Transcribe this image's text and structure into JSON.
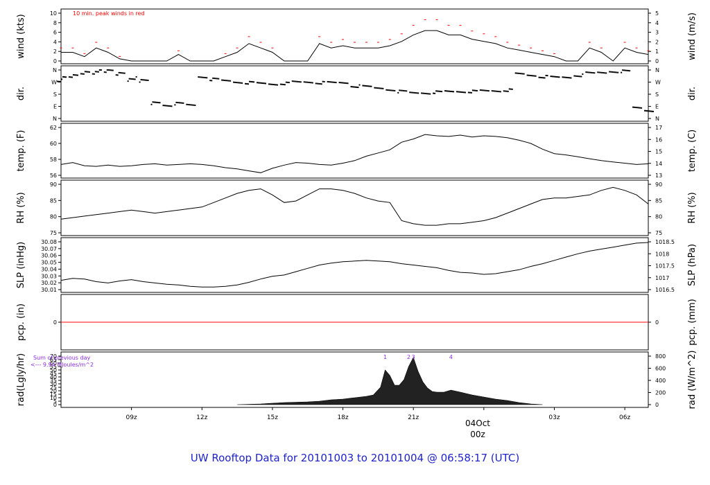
{
  "title": "UW Rooftop Data for 20101003  to  20101004 @ 06:58:17  (UTC)",
  "colors": {
    "title": "#1f23c9",
    "peak": "#ff0000",
    "date": "#ff0000",
    "annot": "#8a2be2",
    "line": "#000000"
  },
  "x_ticks": [
    "09z",
    "12z",
    "15z",
    "18z",
    "21z",
    "03z",
    "06z"
  ],
  "date_label": {
    "day": "04Oct",
    "hour": "00z"
  },
  "wind_note": "10 min. peak winds in red",
  "rad_note": {
    "line1": "Sum of previous day",
    "line2": "<--- 9.94 MJoules/m^2"
  },
  "rad_peaks": [
    "1",
    "2",
    "3",
    "4"
  ],
  "chart_data": [
    {
      "type": "line",
      "name": "wind",
      "ylabel": "wind (kts)",
      "ylabel_right": "wind (m/s)",
      "yticks": [
        "0",
        "2",
        "4",
        "6",
        "8",
        "10"
      ],
      "yticks_right": [
        "0",
        "1",
        "2",
        "3",
        "4",
        "5"
      ],
      "ylim": [
        0,
        11
      ],
      "x_hours": [
        6,
        6.5,
        7,
        7.5,
        8,
        8.5,
        9,
        9.5,
        10,
        10.5,
        11,
        11.5,
        12,
        12.5,
        13,
        13.5,
        14,
        14.5,
        15,
        15.5,
        16,
        16.5,
        17,
        17.5,
        18,
        18.5,
        19,
        19.5,
        20,
        20.5,
        21,
        21.5,
        22,
        22.5,
        23,
        23.5,
        24,
        24.5,
        25,
        25.5,
        26,
        26.5,
        27,
        27.5,
        28,
        28.5,
        29,
        29.5,
        30,
        30.5,
        31
      ],
      "values": [
        2,
        2,
        1,
        3,
        2,
        0.5,
        0,
        0,
        0,
        0,
        1.5,
        0,
        0,
        0,
        1,
        2,
        4,
        3,
        2,
        0,
        0,
        0,
        4,
        3,
        3.5,
        3,
        3,
        3,
        3.5,
        4.5,
        6,
        7,
        7,
        6,
        6,
        5,
        4.5,
        4,
        3,
        2.5,
        2,
        1.5,
        1,
        0,
        0,
        3,
        2,
        0,
        3,
        2,
        1.5
      ]
    },
    {
      "type": "scatter",
      "name": "dir",
      "ylabel": "dir.",
      "ylabel_right": "dir.",
      "yticks": [
        "N",
        "E",
        "S",
        "W",
        "N"
      ],
      "yticks_right": [
        "N",
        "E",
        "S",
        "W",
        "N"
      ],
      "x_hours": [
        6,
        6.5,
        7,
        7.5,
        8,
        8.5,
        9,
        9.5,
        10,
        10.5,
        11,
        11.5,
        12,
        12.5,
        13,
        13.5,
        14,
        14.5,
        15,
        15.5,
        16,
        16.5,
        17,
        17.5,
        18,
        18.5,
        19,
        19.5,
        20,
        20.5,
        21,
        21.5,
        22,
        22.5,
        23,
        23.5,
        24,
        24.5,
        25,
        25.5,
        26,
        26.5,
        27,
        27.5,
        28,
        28.5,
        29,
        29.5,
        30,
        30.5,
        31
      ],
      "values_deg": [
        300,
        320,
        350,
        355,
        355,
        340,
        300,
        280,
        120,
        100,
        110,
        100,
        310,
        290,
        280,
        270,
        265,
        260,
        255,
        260,
        270,
        270,
        265,
        265,
        265,
        240,
        235,
        225,
        215,
        200,
        190,
        190,
        195,
        200,
        200,
        200,
        205,
        205,
        210,
        330,
        320,
        310,
        305,
        305,
        320,
        335,
        340,
        350,
        350,
        80,
        60
      ]
    },
    {
      "type": "line",
      "name": "temp",
      "ylabel": "temp. (F)",
      "ylabel_right": "temp. (C)",
      "yticks": [
        "56",
        "58",
        "60",
        "62"
      ],
      "yticks_right": [
        "13",
        "14",
        "15",
        "16",
        "17"
      ],
      "ylim": [
        54.8,
        62.3
      ],
      "x_hours": [
        6,
        6.5,
        7,
        7.5,
        8,
        8.5,
        9,
        9.5,
        10,
        10.5,
        11,
        11.5,
        12,
        12.5,
        13,
        13.5,
        14,
        14.5,
        15,
        15.5,
        16,
        16.5,
        17,
        17.5,
        18,
        18.5,
        19,
        19.5,
        20,
        20.5,
        21,
        21.5,
        22,
        22.5,
        23,
        23.5,
        24,
        24.5,
        25,
        25.5,
        26,
        26.5,
        27,
        27.5,
        28,
        28.5,
        29,
        29.5,
        30,
        30.5,
        31
      ],
      "values": [
        56.5,
        56.8,
        56.3,
        56.2,
        56.4,
        56.2,
        56.3,
        56.5,
        56.6,
        56.4,
        56.5,
        56.6,
        56.5,
        56.3,
        56.0,
        55.8,
        55.5,
        55.2,
        55.9,
        56.4,
        56.8,
        56.7,
        56.5,
        56.4,
        56.7,
        57.1,
        57.8,
        58.3,
        58.8,
        60.0,
        60.5,
        61.2,
        61.0,
        60.9,
        61.1,
        60.8,
        61.0,
        60.9,
        60.7,
        60.3,
        59.8,
        58.9,
        58.2,
        58.0,
        57.7,
        57.4,
        57.1,
        56.9,
        56.7,
        56.5,
        56.6
      ]
    },
    {
      "type": "line",
      "name": "RH",
      "ylabel": "RH (%)",
      "ylabel_right": "RH (%)",
      "yticks": [
        "75",
        "80",
        "85",
        "90"
      ],
      "yticks_right": [
        "75",
        "80",
        "85",
        "90"
      ],
      "ylim": [
        74.5,
        90.5
      ],
      "x_hours": [
        6,
        6.5,
        7,
        7.5,
        8,
        8.5,
        9,
        9.5,
        10,
        10.5,
        11,
        11.5,
        12,
        12.5,
        13,
        13.5,
        14,
        14.5,
        15,
        15.5,
        16,
        16.5,
        17,
        17.5,
        18,
        18.5,
        19,
        19.5,
        20,
        20.5,
        21,
        21.5,
        22,
        22.5,
        23,
        23.5,
        24,
        24.5,
        25,
        25.5,
        26,
        26.5,
        27,
        27.5,
        28,
        28.5,
        29,
        29.5,
        30,
        30.5,
        31
      ],
      "values": [
        79,
        79.5,
        80,
        80.5,
        81,
        81.5,
        82,
        81.5,
        81,
        81.5,
        82,
        82.5,
        83,
        84.5,
        86,
        87.5,
        88.5,
        89,
        87,
        84.5,
        85,
        87,
        89,
        89,
        88.5,
        87.5,
        86,
        85,
        84.5,
        78.5,
        77.5,
        77,
        77,
        77.5,
        77.5,
        78,
        78.5,
        79.5,
        81,
        82.5,
        84,
        85.5,
        86,
        86,
        86.5,
        87,
        88.5,
        89.5,
        88.5,
        87,
        84
      ]
    },
    {
      "type": "line",
      "name": "SLP",
      "ylabel": "SLP (inHg)",
      "ylabel_right": "SLP (hPa)",
      "yticks": [
        "30.01",
        "30.02",
        "30.03",
        "30.04",
        "30.05",
        "30.06",
        "30.07",
        "30.08"
      ],
      "yticks_right": [
        "1016.5",
        "1017",
        "1017.5",
        "1018",
        "1018.5"
      ],
      "ylim": [
        30.01,
        30.082
      ],
      "x_hours": [
        6,
        6.5,
        7,
        7.5,
        8,
        8.5,
        9,
        9.5,
        10,
        10.5,
        11,
        11.5,
        12,
        12.5,
        13,
        13.5,
        14,
        14.5,
        15,
        15.5,
        16,
        16.5,
        17,
        17.5,
        18,
        18.5,
        19,
        19.5,
        20,
        20.5,
        21,
        21.5,
        22,
        22.5,
        23,
        23.5,
        24,
        24.5,
        25,
        25.5,
        26,
        26.5,
        27,
        27.5,
        28,
        28.5,
        29,
        29.5,
        30,
        30.5,
        31
      ],
      "values": [
        30.024,
        30.027,
        30.026,
        30.022,
        30.02,
        30.023,
        30.025,
        30.022,
        30.02,
        30.018,
        30.017,
        30.015,
        30.014,
        30.014,
        30.015,
        30.017,
        30.021,
        30.026,
        30.03,
        30.032,
        30.037,
        30.042,
        30.047,
        30.05,
        30.052,
        30.053,
        30.054,
        30.053,
        30.052,
        30.049,
        30.047,
        30.045,
        30.043,
        30.039,
        30.036,
        30.035,
        30.033,
        30.034,
        30.037,
        30.04,
        30.045,
        30.049,
        30.054,
        30.059,
        30.064,
        30.068,
        30.071,
        30.074,
        30.077,
        30.08,
        30.081
      ]
    },
    {
      "type": "line",
      "name": "pcp",
      "ylabel": "pcp. (in)",
      "ylabel_right": "pcp. (mm)",
      "yticks": [
        "0"
      ],
      "yticks_right": [
        "0"
      ],
      "ylim": [
        -1,
        1
      ],
      "x_hours": [
        6,
        31
      ],
      "values": [
        0,
        0
      ]
    },
    {
      "type": "area",
      "name": "rad",
      "ylabel": "rad(Lgly/hr)",
      "ylabel_right": "rad (W/m^2)",
      "yticks": [
        "0",
        "5",
        "10",
        "15",
        "20",
        "25",
        "30",
        "35",
        "40",
        "45",
        "50",
        "55",
        "60",
        "65",
        "70"
      ],
      "yticks_right": [
        "0",
        "200",
        "400",
        "600",
        "800"
      ],
      "ylim": [
        0,
        70
      ],
      "x_hours": [
        13.5,
        14.5,
        15.5,
        16.5,
        17,
        17.5,
        18,
        18.5,
        19,
        19.3,
        19.6,
        19.8,
        20,
        20.2,
        20.4,
        20.6,
        20.8,
        21,
        21.2,
        21.4,
        21.6,
        21.8,
        22,
        22.3,
        22.6,
        23,
        23.5,
        24,
        24.5,
        25,
        25.5,
        26,
        26.5
      ],
      "values": [
        0,
        1,
        3,
        4,
        5,
        7,
        8,
        10,
        12,
        14,
        25,
        50,
        42,
        28,
        28,
        36,
        55,
        68,
        48,
        33,
        24,
        19,
        18,
        18,
        21,
        18,
        14,
        11,
        8,
        6,
        3,
        1,
        0
      ]
    }
  ]
}
